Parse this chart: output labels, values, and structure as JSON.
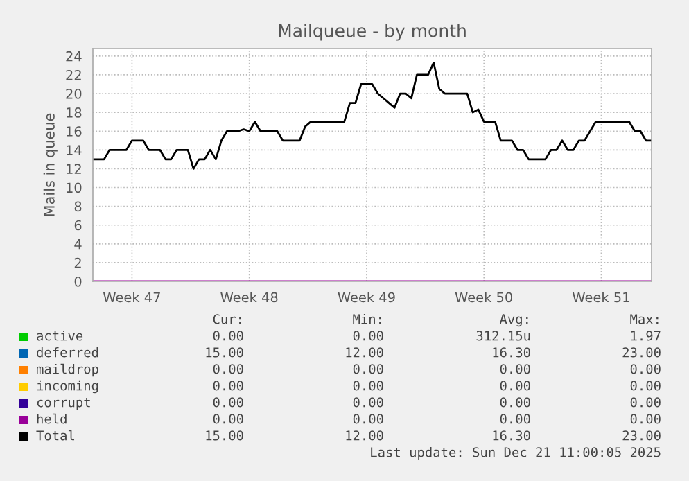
{
  "chart_data": {
    "type": "line",
    "title": "Mailqueue - by month",
    "ylabel": "Mails in queue",
    "ylim": [
      0,
      24.8
    ],
    "yticks": [
      0,
      2,
      4,
      6,
      8,
      10,
      12,
      14,
      16,
      18,
      20,
      22,
      24
    ],
    "categories": [
      null,
      null,
      null,
      null,
      null,
      null,
      null,
      "Week 47",
      null,
      null,
      null,
      null,
      null,
      null,
      null,
      null,
      null,
      null,
      null,
      null,
      null,
      null,
      null,
      null,
      null,
      null,
      null,
      null,
      "Week 48",
      null,
      null,
      null,
      null,
      null,
      null,
      null,
      null,
      null,
      null,
      null,
      null,
      null,
      null,
      null,
      null,
      null,
      null,
      null,
      null,
      "Week 49",
      null,
      null,
      null,
      null,
      null,
      null,
      null,
      null,
      null,
      null,
      null,
      null,
      null,
      null,
      null,
      null,
      null,
      null,
      null,
      null,
      "Week 50",
      null,
      null,
      null,
      null,
      null,
      null,
      null,
      null,
      null,
      null,
      null,
      null,
      null,
      null,
      null,
      null,
      null,
      null,
      null,
      null,
      "Week 51",
      null,
      null,
      null,
      null,
      null,
      null,
      null,
      null,
      null
    ],
    "grid": true,
    "legend": "bottom",
    "series": [
      {
        "name": "active",
        "color": "#00cc00",
        "values": [
          null,
          null,
          null,
          null,
          null,
          null,
          null,
          null,
          null,
          null,
          null,
          null,
          null,
          null,
          null,
          null,
          null,
          null,
          null,
          null,
          null,
          null,
          null,
          null,
          null,
          null,
          null,
          null,
          null,
          null,
          null,
          null,
          null,
          null,
          null,
          null,
          null,
          null,
          null,
          null,
          null,
          null,
          null,
          null,
          null,
          null,
          null,
          null,
          null,
          null,
          null,
          null,
          null,
          null,
          null,
          null,
          null,
          null,
          null,
          null,
          null,
          null,
          null,
          null,
          null,
          null,
          null,
          null,
          null,
          null,
          null,
          null,
          null,
          null,
          null,
          null,
          null,
          null,
          null,
          null,
          null,
          null,
          null,
          null,
          null,
          null,
          null,
          null,
          null,
          null,
          null,
          null,
          null,
          null,
          null,
          null,
          null,
          null,
          null,
          null,
          null
        ]
      },
      {
        "name": "deferred",
        "color": "#0066b3",
        "values": [
          null,
          null,
          null,
          null,
          null,
          null,
          null,
          null,
          null,
          null,
          null,
          null,
          null,
          null,
          null,
          null,
          null,
          null,
          null,
          null,
          null,
          null,
          null,
          null,
          null,
          null,
          null,
          null,
          null,
          null,
          null,
          null,
          null,
          null,
          null,
          null,
          null,
          null,
          null,
          null,
          null,
          null,
          null,
          null,
          null,
          null,
          null,
          null,
          null,
          null,
          null,
          null,
          null,
          null,
          null,
          null,
          null,
          null,
          null,
          null,
          null,
          null,
          null,
          null,
          null,
          null,
          null,
          null,
          null,
          null,
          null,
          null,
          null,
          null,
          null,
          null,
          null,
          null,
          null,
          null,
          null,
          null,
          null,
          null,
          null,
          null,
          null,
          null,
          null,
          null,
          null,
          null,
          null,
          null,
          null,
          null,
          null,
          null,
          null,
          null,
          null
        ]
      },
      {
        "name": "maildrop",
        "color": "#ff8000",
        "values": [
          null,
          null,
          null,
          null,
          null,
          null,
          null,
          null,
          null,
          null,
          null,
          null,
          null,
          null,
          null,
          null,
          null,
          null,
          null,
          null,
          null,
          null,
          null,
          null,
          null,
          null,
          null,
          null,
          null,
          null,
          null,
          null,
          null,
          null,
          null,
          null,
          null,
          null,
          null,
          null,
          null,
          null,
          null,
          null,
          null,
          null,
          null,
          null,
          null,
          null,
          null,
          null,
          null,
          null,
          null,
          null,
          null,
          null,
          null,
          null,
          null,
          null,
          null,
          null,
          null,
          null,
          null,
          null,
          null,
          null,
          null,
          null,
          null,
          null,
          null,
          null,
          null,
          null,
          null,
          null,
          null,
          null,
          null,
          null,
          null,
          null,
          null,
          null,
          null,
          null,
          null,
          null,
          null,
          null,
          null,
          null,
          null,
          null,
          null,
          null,
          null
        ]
      },
      {
        "name": "incoming",
        "color": "#ffcc00",
        "values": [
          null,
          null,
          null,
          null,
          null,
          null,
          null,
          null,
          null,
          null,
          null,
          null,
          null,
          null,
          null,
          null,
          null,
          null,
          null,
          null,
          null,
          null,
          null,
          null,
          null,
          null,
          null,
          null,
          null,
          null,
          null,
          null,
          null,
          null,
          null,
          null,
          null,
          null,
          null,
          null,
          null,
          null,
          null,
          null,
          null,
          null,
          null,
          null,
          null,
          null,
          null,
          null,
          null,
          null,
          null,
          null,
          null,
          null,
          null,
          null,
          null,
          null,
          null,
          null,
          null,
          null,
          null,
          null,
          null,
          null,
          null,
          null,
          null,
          null,
          null,
          null,
          null,
          null,
          null,
          null,
          null,
          null,
          null,
          null,
          null,
          null,
          null,
          null,
          null,
          null,
          null,
          null,
          null,
          null,
          null,
          null,
          null,
          null,
          null,
          null,
          null
        ]
      },
      {
        "name": "corrupt",
        "color": "#330099",
        "values": [
          null,
          null,
          null,
          null,
          null,
          null,
          null,
          null,
          null,
          null,
          null,
          null,
          null,
          null,
          null,
          null,
          null,
          null,
          null,
          null,
          null,
          null,
          null,
          null,
          null,
          null,
          null,
          null,
          null,
          null,
          null,
          null,
          null,
          null,
          null,
          null,
          null,
          null,
          null,
          null,
          null,
          null,
          null,
          null,
          null,
          null,
          null,
          null,
          null,
          null,
          null,
          null,
          null,
          null,
          null,
          null,
          null,
          null,
          null,
          null,
          null,
          null,
          null,
          null,
          null,
          null,
          null,
          null,
          null,
          null,
          null,
          null,
          null,
          null,
          null,
          null,
          null,
          null,
          null,
          null,
          null,
          null,
          null,
          null,
          null,
          null,
          null,
          null,
          null,
          null,
          null,
          null,
          null,
          null,
          null,
          null,
          null,
          null,
          null,
          null,
          null
        ]
      },
      {
        "name": "held",
        "color": "#990099",
        "values": [
          0,
          0,
          0,
          0,
          0,
          0,
          0,
          0,
          0,
          0,
          0,
          0,
          0,
          0,
          0,
          0,
          0,
          0,
          0,
          0,
          0,
          0,
          0,
          0,
          0,
          0,
          0,
          0,
          0,
          0,
          0,
          0,
          0,
          0,
          0,
          0,
          0,
          0,
          0,
          0,
          0,
          0,
          0,
          0,
          0,
          0,
          0,
          0,
          0,
          0,
          0,
          0,
          0,
          0,
          0,
          0,
          0,
          0,
          0,
          0,
          0,
          0,
          0,
          0,
          0,
          0,
          0,
          0,
          0,
          0,
          0,
          0,
          0,
          0,
          0,
          0,
          0,
          0,
          0,
          0,
          0,
          0,
          0,
          0,
          0,
          0,
          0,
          0,
          0,
          0,
          0,
          0,
          0,
          0,
          0,
          0,
          0,
          0,
          0,
          0,
          0
        ]
      },
      {
        "name": "Total",
        "color": "#000000",
        "values": [
          13,
          13,
          13,
          14,
          14,
          14,
          14,
          15,
          15,
          15,
          14,
          14,
          14,
          13,
          13,
          14,
          14,
          14,
          12,
          13,
          13,
          14,
          13,
          15,
          16,
          16,
          16,
          16.2,
          16,
          17,
          16,
          16,
          16,
          16,
          15,
          15,
          15,
          15,
          16.5,
          17,
          17,
          17,
          17,
          17,
          17,
          17,
          19,
          19,
          21,
          21,
          21,
          20,
          19.5,
          19,
          18.5,
          20,
          20,
          19.5,
          22,
          22,
          22,
          23.3,
          20.5,
          20,
          20,
          20,
          20,
          20,
          18,
          18.3,
          17,
          17,
          17,
          15,
          15,
          15,
          14,
          14,
          13,
          13,
          13,
          13,
          14,
          14,
          15,
          14,
          14,
          15,
          15,
          16,
          17,
          17,
          17,
          17,
          17,
          17,
          17,
          16,
          16,
          15,
          15
        ]
      }
    ],
    "annotations": [
      "Cur:",
      "Min:",
      "Avg:",
      "Max:",
      "0.00",
      "0.00",
      "312.15u",
      "1.97",
      "15.00",
      "12.00",
      "16.30",
      "23.00",
      "0.00",
      "0.00",
      "0.00",
      "0.00",
      "0.00",
      "0.00",
      "0.00",
      "0.00",
      "0.00",
      "0.00",
      "0.00",
      "0.00",
      "0.00",
      "0.00",
      "0.00",
      "0.00",
      "15.00",
      "12.00",
      "16.30",
      "23.00",
      "Last update: Sun Dec 21 11:00:05 2025"
    ]
  }
}
